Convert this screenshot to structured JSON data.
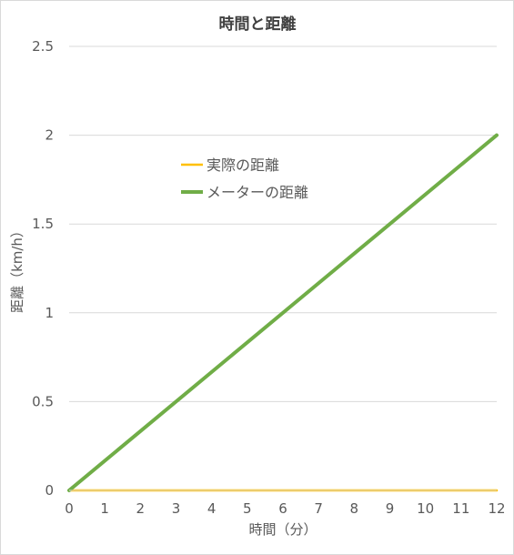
{
  "chart_data": {
    "type": "line",
    "title": "時間と距離",
    "xlabel": "時間（分）",
    "ylabel": "距離（km/h）",
    "x": [
      0,
      12
    ],
    "xlim": [
      0,
      12
    ],
    "ylim": [
      0,
      2.5
    ],
    "x_ticks": [
      "0",
      "1",
      "2",
      "3",
      "4",
      "5",
      "6",
      "7",
      "8",
      "9",
      "10",
      "11",
      "12"
    ],
    "y_ticks": [
      "0",
      "0.5",
      "1",
      "1.5",
      "2",
      "2.5"
    ],
    "grid": true,
    "legend_position": "center",
    "series": [
      {
        "name": "実際の距離",
        "x": [
          0,
          12
        ],
        "y": [
          0,
          0
        ],
        "color": "#ffc000"
      },
      {
        "name": "メーターの距離",
        "x": [
          0,
          12
        ],
        "y": [
          0,
          2
        ],
        "color": "#70ad47"
      }
    ]
  }
}
